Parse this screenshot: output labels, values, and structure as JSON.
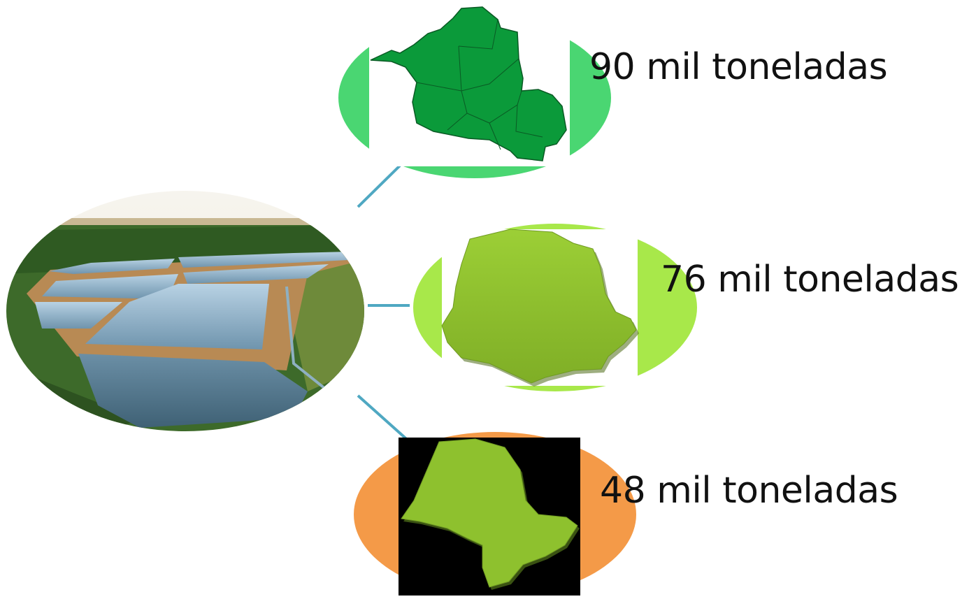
{
  "diagram": {
    "center": {
      "icon": "aquaculture-ponds-aerial-photo"
    },
    "items": [
      {
        "label": "90 mil toneladas",
        "icon": "state-map-rondonia",
        "ellipse_color": "#4ad672",
        "map_color": "#0b9a3a"
      },
      {
        "label": "76 mil toneladas",
        "icon": "state-map-parana",
        "ellipse_color": "#a8e84a",
        "map_color": "#8ec12e"
      },
      {
        "label": "48 mil toneladas",
        "icon": "state-map-sao-paulo",
        "ellipse_color": "#f49a48",
        "map_color": "#8ec12e"
      }
    ],
    "connector_color": "#4fa8c2"
  }
}
